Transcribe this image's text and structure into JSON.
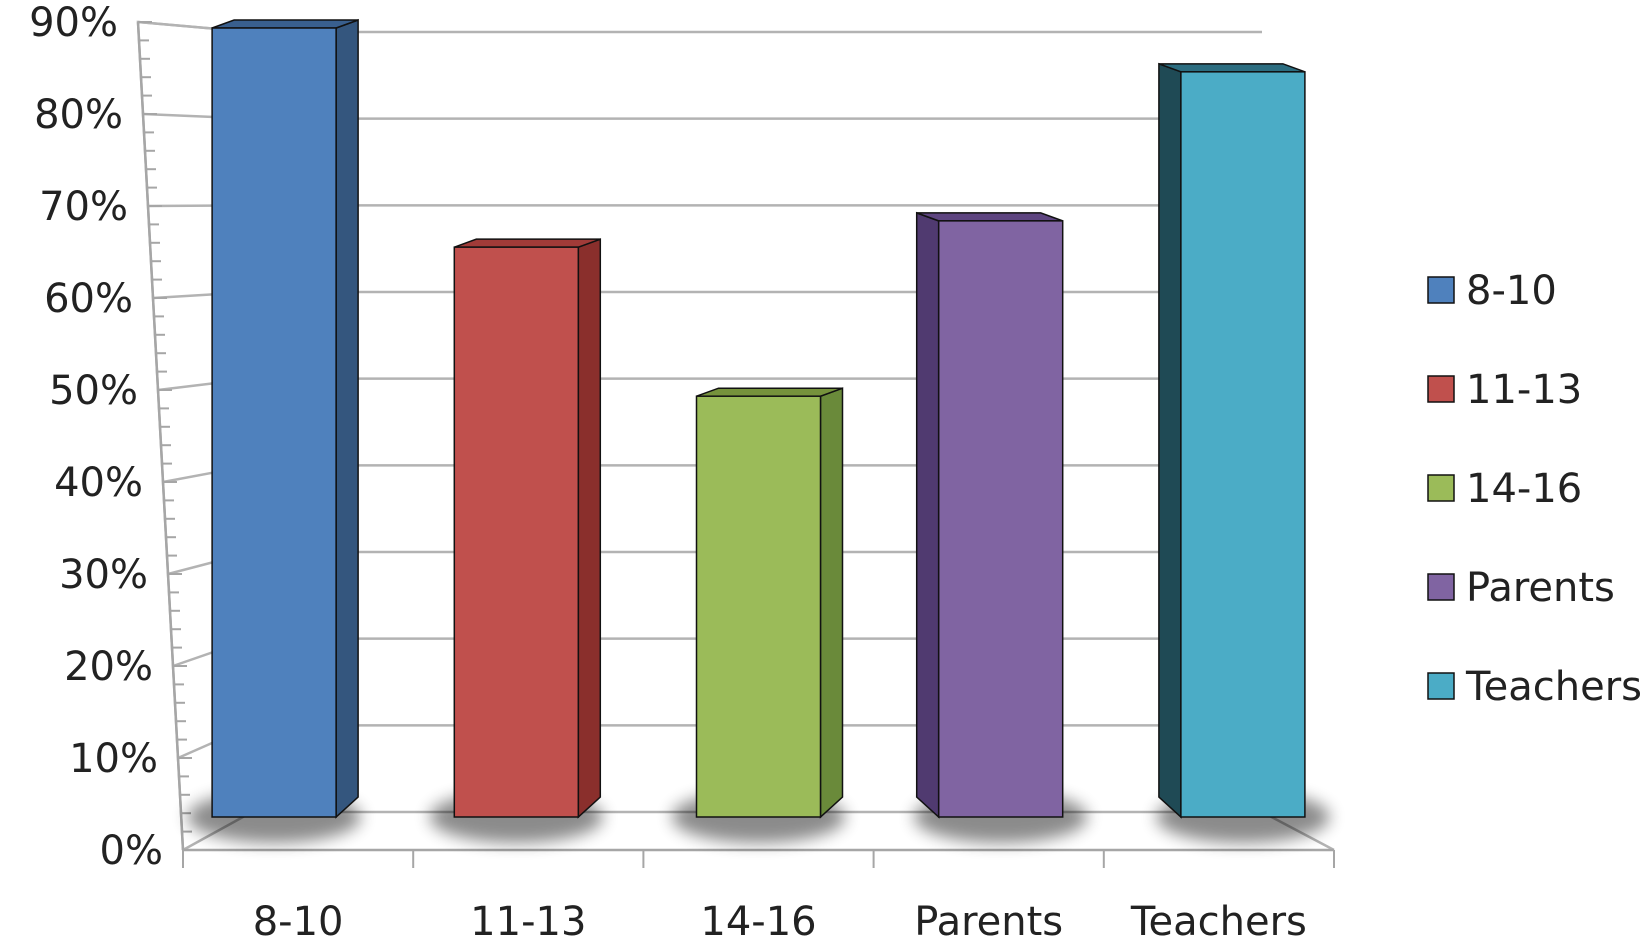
{
  "chart_data": {
    "type": "bar",
    "style": "3d-column",
    "categories": [
      "8-10",
      "11-13",
      "14-16",
      "Parents",
      "Teachers"
    ],
    "values": [
      0.9,
      0.65,
      0.48,
      0.68,
      0.85
    ],
    "colors": [
      "#4f81bd",
      "#c0504d",
      "#9bbb59",
      "#8064a2",
      "#4bacc6"
    ],
    "side_colors": [
      "#34567e",
      "#8a2f2c",
      "#6a8a3a",
      "#503a70",
      "#1f4a55"
    ],
    "top_colors": [
      "#395f8e",
      "#a13b38",
      "#76923c",
      "#5e4580",
      "#2c6d80"
    ],
    "y_ticks": [
      0,
      0.1,
      0.2,
      0.3,
      0.4,
      0.5,
      0.6,
      0.7,
      0.8,
      0.9
    ],
    "y_tick_labels": [
      "0%",
      "10%",
      "20%",
      "30%",
      "40%",
      "50%",
      "60%",
      "70%",
      "80%",
      "90%"
    ],
    "ylim": [
      0,
      0.9
    ],
    "ylabel": "",
    "xlabel": "",
    "title": "",
    "grid": true,
    "legend": {
      "position": "right",
      "entries": [
        "8-10",
        " 11-13",
        "14-16",
        "Parents",
        "Teachers"
      ]
    }
  }
}
